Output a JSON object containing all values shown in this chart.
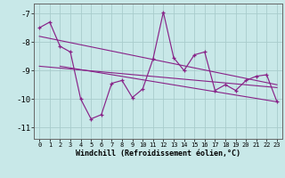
{
  "x": [
    0,
    1,
    2,
    3,
    4,
    5,
    6,
    7,
    8,
    9,
    10,
    11,
    12,
    13,
    14,
    15,
    16,
    17,
    18,
    19,
    20,
    21,
    22,
    23
  ],
  "line_main": [
    -7.5,
    -7.3,
    -8.15,
    -8.35,
    -10.0,
    -10.7,
    -10.55,
    -9.45,
    -9.35,
    -9.95,
    -9.65,
    -8.6,
    -6.95,
    -8.55,
    -9.0,
    -8.45,
    -8.35,
    -9.7,
    -9.5,
    -9.7,
    -9.35,
    -9.2,
    -9.15,
    -10.1
  ],
  "trend1_x": [
    0,
    23
  ],
  "trend1_y": [
    -7.8,
    -9.5
  ],
  "trend2_x": [
    0,
    23
  ],
  "trend2_y": [
    -8.85,
    -9.6
  ],
  "trend3_x": [
    2,
    23
  ],
  "trend3_y": [
    -8.85,
    -10.1
  ],
  "bg_color": "#c8e8e8",
  "grid_color": "#a8cccc",
  "line_color": "#882288",
  "ylabel_vals": [
    -7,
    -8,
    -9,
    -10,
    -11
  ],
  "xlabel": "Windchill (Refroidissement éolien,°C)",
  "ylim": [
    -11.4,
    -6.65
  ],
  "xlim": [
    -0.5,
    23.5
  ]
}
